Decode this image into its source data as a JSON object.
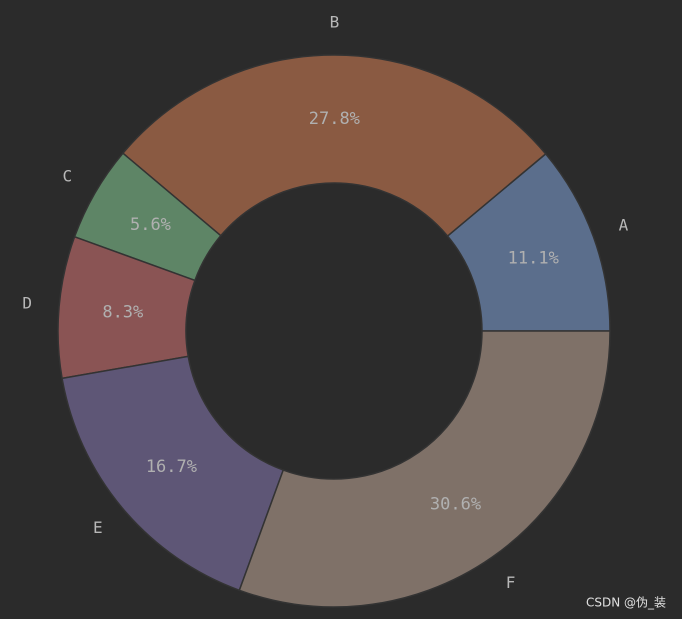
{
  "chart_data": {
    "type": "donut",
    "categories": [
      "A",
      "B",
      "C",
      "D",
      "E",
      "F"
    ],
    "values": [
      11.1,
      27.8,
      5.6,
      8.3,
      16.7,
      30.6
    ],
    "value_labels": [
      "11.1%",
      "27.8%",
      "5.6%",
      "8.3%",
      "16.7%",
      "30.6%"
    ],
    "colors": [
      "#5b6e8c",
      "#8a5a42",
      "#5e8566",
      "#8a5454",
      "#5e5676",
      "#7f7168"
    ]
  },
  "watermark": "CSDN @伪_装"
}
